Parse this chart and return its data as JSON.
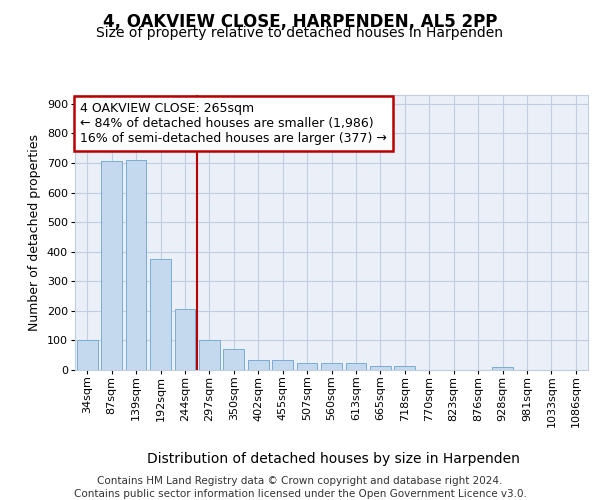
{
  "title": "4, OAKVIEW CLOSE, HARPENDEN, AL5 2PP",
  "subtitle": "Size of property relative to detached houses in Harpenden",
  "xlabel": "Distribution of detached houses by size in Harpenden",
  "ylabel": "Number of detached properties",
  "categories": [
    "34sqm",
    "87sqm",
    "139sqm",
    "192sqm",
    "244sqm",
    "297sqm",
    "350sqm",
    "402sqm",
    "455sqm",
    "507sqm",
    "560sqm",
    "613sqm",
    "665sqm",
    "718sqm",
    "770sqm",
    "823sqm",
    "876sqm",
    "928sqm",
    "981sqm",
    "1033sqm",
    "1086sqm"
  ],
  "values": [
    100,
    706,
    711,
    375,
    205,
    100,
    70,
    33,
    33,
    25,
    22,
    22,
    12,
    12,
    0,
    0,
    0,
    10,
    0,
    0,
    0
  ],
  "bar_color": "#c5d9ee",
  "bar_edge_color": "#7aadd4",
  "vline_x": 4.5,
  "vline_color": "#bb0000",
  "annotation_line1": "4 OAKVIEW CLOSE: 265sqm",
  "annotation_line2": "← 84% of detached houses are smaller (1,986)",
  "annotation_line3": "16% of semi-detached houses are larger (377) →",
  "annotation_box_edgecolor": "#bb0000",
  "ylim_max": 930,
  "yticks": [
    0,
    100,
    200,
    300,
    400,
    500,
    600,
    700,
    800,
    900
  ],
  "bg_color": "#eaeff8",
  "grid_color": "#c2cedf",
  "footer_line1": "Contains HM Land Registry data © Crown copyright and database right 2024.",
  "footer_line2": "Contains public sector information licensed under the Open Government Licence v3.0.",
  "title_fontsize": 12,
  "subtitle_fontsize": 10,
  "xlabel_fontsize": 10,
  "ylabel_fontsize": 9,
  "tick_fontsize": 8,
  "annotation_fontsize": 9,
  "footer_fontsize": 7.5
}
